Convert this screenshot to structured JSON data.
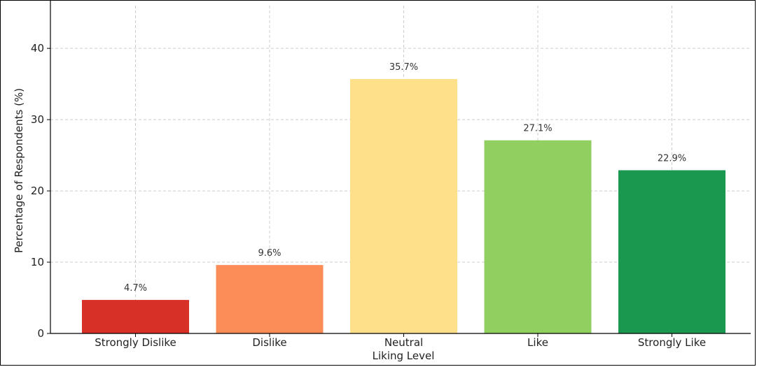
{
  "chart_data": {
    "type": "bar",
    "xlabel": "Liking Level",
    "ylabel": "Percentage of Respondents (%)",
    "categories": [
      "Strongly Dislike",
      "Dislike",
      "Neutral",
      "Like",
      "Strongly Like"
    ],
    "values": [
      4.7,
      9.6,
      35.7,
      27.1,
      22.9
    ],
    "value_labels": [
      "4.7%",
      "9.6%",
      "35.7%",
      "27.1%",
      "22.9%"
    ],
    "colors": [
      "#d73027",
      "#fc8d59",
      "#fee08b",
      "#91cf60",
      "#1a9850"
    ],
    "ylim": [
      0,
      46
    ],
    "yticks": [
      0,
      10,
      20,
      30,
      40
    ],
    "grid": true
  }
}
